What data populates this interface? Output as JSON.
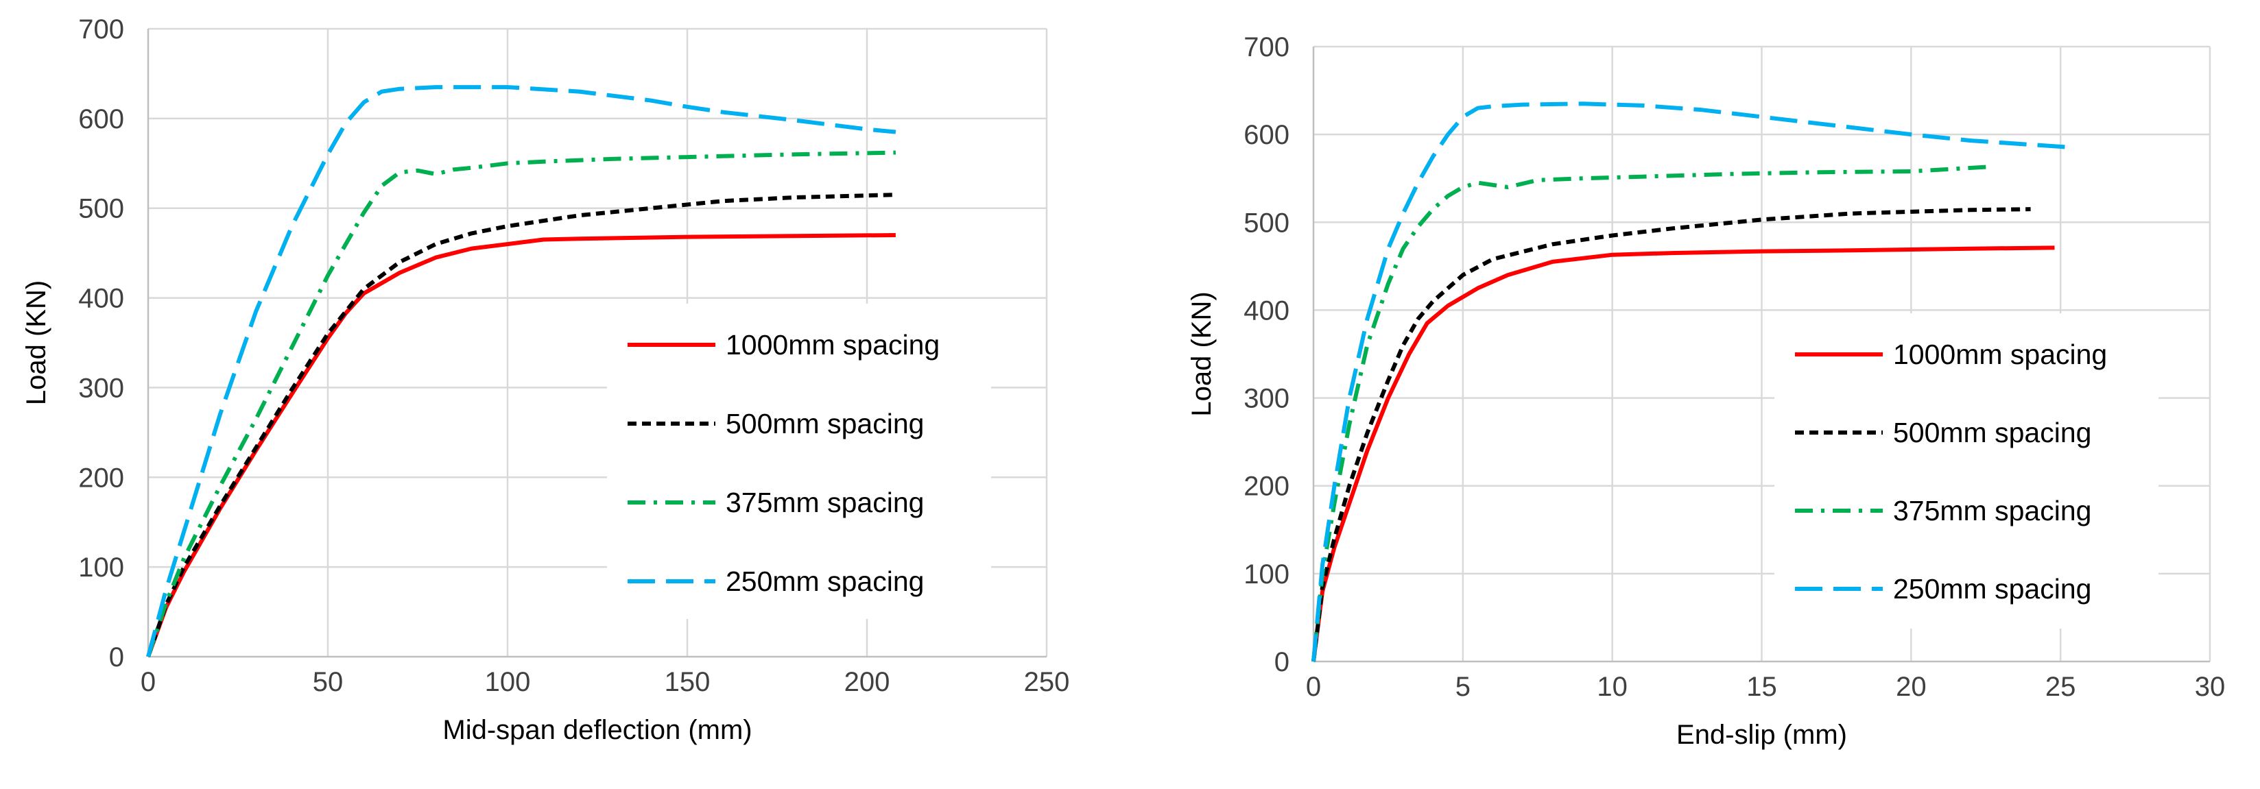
{
  "chart_data": [
    {
      "type": "line",
      "title": "",
      "xlabel": "Mid-span deflection (mm)",
      "ylabel": "Load (KN)",
      "xlim": [
        0,
        250
      ],
      "ylim": [
        0,
        700
      ],
      "xticks": [
        0,
        50,
        100,
        150,
        200,
        250
      ],
      "yticks": [
        0,
        100,
        200,
        300,
        400,
        500,
        600,
        700
      ],
      "grid": "vertical and horizontal",
      "legend_position": "center-right",
      "series": [
        {
          "name": "1000mm spacing",
          "color": "#ff0000",
          "style": "solid",
          "x": [
            0,
            5,
            10,
            20,
            30,
            40,
            50,
            55,
            60,
            70,
            80,
            90,
            100,
            110,
            120,
            150,
            180,
            208
          ],
          "y": [
            0,
            55,
            95,
            165,
            230,
            293,
            355,
            383,
            405,
            428,
            445,
            455,
            460,
            465,
            466,
            468,
            469,
            470
          ]
        },
        {
          "name": "500mm spacing",
          "color": "#000000",
          "style": "dashed",
          "x": [
            0,
            5,
            10,
            20,
            30,
            40,
            50,
            60,
            70,
            80,
            90,
            100,
            120,
            140,
            160,
            180,
            208
          ],
          "y": [
            0,
            58,
            100,
            168,
            233,
            298,
            360,
            410,
            440,
            460,
            472,
            480,
            492,
            500,
            508,
            512,
            515
          ]
        },
        {
          "name": "375mm spacing",
          "color": "#00b050",
          "style": "dash-dot",
          "x": [
            0,
            5,
            10,
            20,
            30,
            40,
            50,
            60,
            65,
            70,
            75,
            80,
            85,
            90,
            100,
            110,
            130,
            150,
            180,
            208
          ],
          "y": [
            0,
            60,
            110,
            190,
            265,
            345,
            425,
            495,
            525,
            540,
            542,
            538,
            543,
            545,
            550,
            552,
            555,
            557,
            560,
            562
          ]
        },
        {
          "name": "250mm spacing",
          "color": "#00b0f0",
          "style": "long-dash",
          "x": [
            0,
            5,
            10,
            20,
            30,
            40,
            50,
            55,
            60,
            65,
            70,
            80,
            100,
            120,
            140,
            150,
            160,
            180,
            200,
            208
          ],
          "y": [
            0,
            75,
            140,
            270,
            385,
            480,
            560,
            595,
            618,
            630,
            633,
            635,
            635,
            630,
            620,
            613,
            607,
            598,
            588,
            585
          ]
        }
      ]
    },
    {
      "type": "line",
      "title": "",
      "xlabel": "End-slip (mm)",
      "ylabel": "Load (KN)",
      "xlim": [
        0,
        30
      ],
      "ylim": [
        0,
        700
      ],
      "xticks": [
        0,
        5,
        10,
        15,
        20,
        25,
        30
      ],
      "yticks": [
        0,
        100,
        200,
        300,
        400,
        500,
        600,
        700
      ],
      "grid": "vertical and horizontal",
      "legend_position": "center-right",
      "series": [
        {
          "name": "1000mm spacing",
          "color": "#ff0000",
          "style": "solid",
          "x": [
            0,
            0.3,
            0.7,
            1.2,
            1.8,
            2.5,
            3.2,
            3.8,
            4.5,
            5.5,
            6.5,
            8,
            10,
            12,
            15,
            18,
            20,
            22,
            24.8
          ],
          "y": [
            0,
            80,
            130,
            180,
            240,
            300,
            350,
            385,
            405,
            425,
            440,
            455,
            463,
            465,
            467,
            468,
            469,
            470,
            471
          ]
        },
        {
          "name": "500mm spacing",
          "color": "#000000",
          "style": "dashed",
          "x": [
            0,
            0.3,
            0.7,
            1.2,
            1.8,
            2.5,
            3,
            3.5,
            4,
            5,
            6,
            8,
            10,
            12,
            15,
            18,
            20,
            22,
            24
          ],
          "y": [
            0,
            85,
            140,
            200,
            260,
            320,
            360,
            390,
            410,
            440,
            458,
            475,
            485,
            493,
            503,
            510,
            512,
            514,
            515
          ]
        },
        {
          "name": "375mm spacing",
          "color": "#00b050",
          "style": "dash-dot",
          "x": [
            0,
            0.3,
            0.7,
            1.2,
            1.8,
            2.5,
            3,
            3.5,
            4,
            4.5,
            5,
            5.5,
            6.5,
            7.5,
            9,
            11,
            14,
            17,
            20,
            22.5
          ],
          "y": [
            0,
            100,
            180,
            270,
            360,
            430,
            470,
            495,
            515,
            530,
            540,
            545,
            540,
            548,
            550,
            552,
            555,
            557,
            558,
            563
          ]
        },
        {
          "name": "250mm spacing",
          "color": "#00b0f0",
          "style": "long-dash",
          "x": [
            0,
            0.3,
            0.7,
            1.2,
            1.8,
            2.5,
            3,
            3.5,
            4,
            4.5,
            5,
            5.5,
            6,
            7,
            9,
            11,
            13,
            15,
            18,
            20,
            22,
            25.5
          ],
          "y": [
            0,
            110,
            200,
            300,
            390,
            470,
            510,
            545,
            575,
            600,
            620,
            630,
            632,
            634,
            635,
            633,
            628,
            620,
            608,
            600,
            593,
            585
          ]
        }
      ]
    }
  ]
}
